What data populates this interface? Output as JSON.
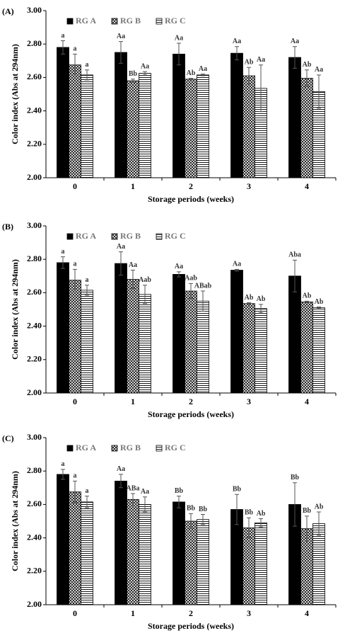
{
  "chart_data": [
    {
      "type": "bar",
      "label": "(A)",
      "xlabel": "Storage periods (weeks)",
      "ylabel": "Color index (Abs at 294nm)",
      "categories": [
        "0",
        "1",
        "2",
        "3",
        "4"
      ],
      "ylim": [
        2,
        3
      ],
      "yticks": [
        {
          "value": 2,
          "label": "2.00"
        },
        {
          "value": 2.2,
          "label": "2.20"
        },
        {
          "value": 2.4,
          "label": "2.40"
        },
        {
          "value": 2.6,
          "label": "2.60"
        },
        {
          "value": 2.8,
          "label": "2.80"
        },
        {
          "value": 3,
          "label": "3.00"
        }
      ],
      "legend": "top-left",
      "series": [
        {
          "name": "RG A",
          "color": "#000000",
          "pattern": "solid",
          "values": [
            2.78,
            2.75,
            2.74,
            2.745,
            2.72
          ],
          "errors": [
            0.04,
            0.065,
            0.065,
            0.04,
            0.065
          ],
          "annotations": [
            "a",
            "Aa",
            "Aa",
            "Aa",
            "Aa"
          ]
        },
        {
          "name": "RG B",
          "color": "#000000",
          "pattern": "crosshatch",
          "values": [
            2.675,
            2.58,
            2.59,
            2.61,
            2.595
          ],
          "errors": [
            0.065,
            0.01,
            0.005,
            0.05,
            0.05
          ],
          "annotations": [
            "a",
            "Bb",
            "Ab",
            "Ab",
            "Ab"
          ]
        },
        {
          "name": "RG C",
          "color": "#000000",
          "pattern": "hlines",
          "values": [
            2.615,
            2.625,
            2.615,
            2.535,
            2.515
          ],
          "errors": [
            0.03,
            0.01,
            0.005,
            0.14,
            0.1
          ],
          "annotations": [
            "a",
            "Aa",
            "Aa",
            "Aa",
            "Aa"
          ]
        }
      ]
    },
    {
      "type": "bar",
      "label": "(B)",
      "xlabel": "Storage periods (weeks)",
      "ylabel": "Color index (Abs at 294nm)",
      "categories": [
        "0",
        "1",
        "2",
        "3",
        "4"
      ],
      "ylim": [
        2,
        3
      ],
      "yticks": [
        {
          "value": 2,
          "label": "2.00"
        },
        {
          "value": 2.2,
          "label": "2.20"
        },
        {
          "value": 2.4,
          "label": "2.40"
        },
        {
          "value": 2.6,
          "label": "2.60"
        },
        {
          "value": 2.8,
          "label": "2.80"
        },
        {
          "value": 3,
          "label": "3.00"
        }
      ],
      "legend": "top-left",
      "series": [
        {
          "name": "RG A",
          "color": "#000000",
          "pattern": "solid",
          "values": [
            2.78,
            2.775,
            2.71,
            2.735,
            2.7
          ],
          "errors": [
            0.035,
            0.07,
            0.015,
            0.005,
            0.095
          ],
          "annotations": [
            "a",
            "Aa",
            "Aa",
            "Aa",
            "Aba"
          ]
        },
        {
          "name": "RG B",
          "color": "#000000",
          "pattern": "crosshatch",
          "values": [
            2.675,
            2.68,
            2.61,
            2.535,
            2.545
          ],
          "errors": [
            0.065,
            0.055,
            0.045,
            0.005,
            0.005
          ],
          "annotations": [
            "a",
            "Aa",
            "Aab",
            "Ab",
            "Ab"
          ]
        },
        {
          "name": "RG C",
          "color": "#000000",
          "pattern": "hlines",
          "values": [
            2.615,
            2.59,
            2.55,
            2.505,
            2.51
          ],
          "errors": [
            0.03,
            0.055,
            0.06,
            0.025,
            0.005
          ],
          "annotations": [
            "a",
            "Aab",
            "ABab",
            "Ab",
            "Ab"
          ]
        }
      ]
    },
    {
      "type": "bar",
      "label": "(C)",
      "xlabel": "Storage periods (weeks)",
      "ylabel": "Color index (Abs at 294nm)",
      "categories": [
        "0",
        "1",
        "2",
        "3",
        "4"
      ],
      "ylim": [
        2,
        3
      ],
      "yticks": [
        {
          "value": 2,
          "label": "2.00"
        },
        {
          "value": 2.2,
          "label": "2.20"
        },
        {
          "value": 2.4,
          "label": "2.40"
        },
        {
          "value": 2.6,
          "label": "2.60"
        },
        {
          "value": 2.8,
          "label": "2.80"
        },
        {
          "value": 3,
          "label": "3.00"
        }
      ],
      "legend": "top-left",
      "series": [
        {
          "name": "RG A",
          "color": "#000000",
          "pattern": "solid",
          "values": [
            2.78,
            2.74,
            2.615,
            2.57,
            2.6
          ],
          "errors": [
            0.03,
            0.04,
            0.035,
            0.09,
            0.13
          ],
          "annotations": [
            "a",
            "Aa",
            "Bb",
            "Bb",
            "Bb"
          ]
        },
        {
          "name": "RG B",
          "color": "#000000",
          "pattern": "crosshatch",
          "values": [
            2.675,
            2.63,
            2.5,
            2.46,
            2.455
          ],
          "errors": [
            0.065,
            0.035,
            0.045,
            0.06,
            0.075
          ],
          "annotations": [
            "a",
            "ABa",
            "Bb",
            "Bb",
            "Bb"
          ]
        },
        {
          "name": "RG C",
          "color": "#000000",
          "pattern": "hlines",
          "values": [
            2.615,
            2.6,
            2.51,
            2.49,
            2.485
          ],
          "errors": [
            0.035,
            0.045,
            0.03,
            0.025,
            0.07
          ],
          "annotations": [
            "a",
            "Aa",
            "Bb",
            "Ab",
            "Ab"
          ]
        }
      ]
    }
  ]
}
